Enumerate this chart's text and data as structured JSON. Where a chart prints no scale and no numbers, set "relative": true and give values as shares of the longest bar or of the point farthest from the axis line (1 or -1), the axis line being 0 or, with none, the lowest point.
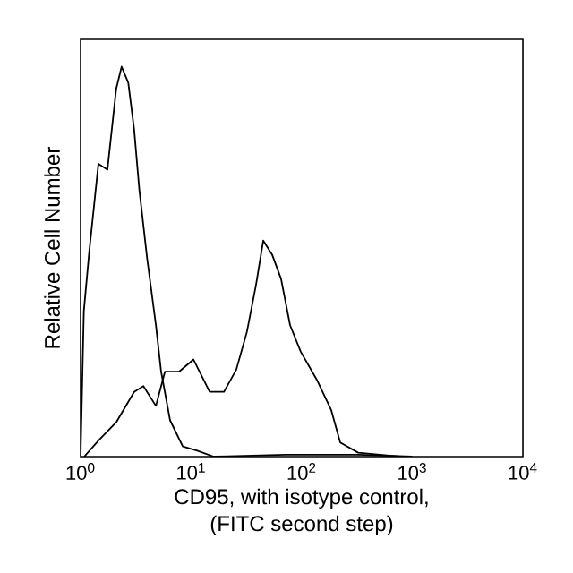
{
  "chart_data": {
    "type": "line",
    "relative": true,
    "log": "x",
    "xlabel": "CD95, with isotype control, (FITC second step)",
    "ylabel": "Relative Cell Number",
    "xlim": [
      1,
      10000
    ],
    "xticks": [
      {
        "value": 1,
        "label": "10$^{0}$"
      },
      {
        "value": 10,
        "label": "10$^{1}$"
      },
      {
        "value": 100,
        "label": "10$^{2}$"
      },
      {
        "value": 1000,
        "label": "10$^{3}$"
      },
      {
        "value": 10000,
        "label": "10$^{4}$"
      }
    ],
    "series": [
      {
        "color": "#000000",
        "x": [
          1,
          1.07,
          1.2,
          1.45,
          1.75,
          2.1,
          2.35,
          2.7,
          3.05,
          3.4,
          4.0,
          4.8,
          5.35,
          6.45,
          8.4,
          11.2,
          16,
          72,
          320,
          1000
        ],
        "values": [
          0,
          0.373,
          0.528,
          0.751,
          0.736,
          0.943,
          1,
          0.959,
          0.839,
          0.684,
          0.508,
          0.337,
          0.218,
          0.093,
          0.026,
          0.016,
          0,
          0.005,
          0.005,
          0
        ]
      },
      {
        "color": "#000000",
        "x": [
          1.08,
          1.45,
          2.1,
          3.05,
          3.7,
          4.8,
          5.8,
          7.8,
          10.5,
          14.7,
          19.8,
          25.6,
          32,
          38.6,
          44.9,
          54,
          65,
          78.5,
          98,
          137,
          185,
          223,
          324,
          760
        ],
        "values": [
          0,
          0.041,
          0.088,
          0.166,
          0.181,
          0.13,
          0.218,
          0.218,
          0.249,
          0.166,
          0.166,
          0.223,
          0.321,
          0.44,
          0.554,
          0.518,
          0.456,
          0.337,
          0.269,
          0.197,
          0.119,
          0.036,
          0.01,
          0
        ]
      }
    ]
  }
}
